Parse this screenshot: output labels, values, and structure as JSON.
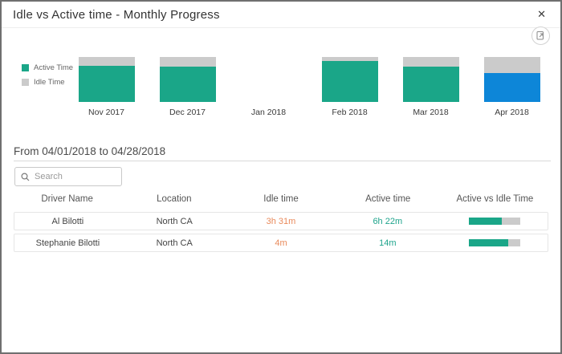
{
  "dialog": {
    "title": "Idle vs Active time - Monthly Progress",
    "close_label": "✕"
  },
  "toolbar": {
    "export_icon": "export-report-icon"
  },
  "colors": {
    "active_teal": "#1aa688",
    "idle_gray": "#cbcbcb",
    "selected_blue": "#0d86d8",
    "idle_text_orange": "#e98a5b",
    "active_text_teal": "#1fa48c"
  },
  "legend": {
    "items": [
      {
        "label": "Active Time",
        "color": "#1aa688"
      },
      {
        "label": "Idle Time",
        "color": "#cbcbcb"
      }
    ]
  },
  "chart_data": {
    "type": "bar",
    "stacked": true,
    "title": "Idle vs Active time - Monthly Progress",
    "categories": [
      "Nov 2017",
      "Dec 2017",
      "Jan 2018",
      "Feb 2018",
      "Mar 2018",
      "Apr 2018"
    ],
    "series": [
      {
        "name": "Active Time",
        "color": "#1aa688",
        "values_pct": [
          81,
          79,
          null,
          91,
          79,
          65
        ]
      },
      {
        "name": "Idle Time",
        "color": "#cbcbcb",
        "values_pct": [
          19,
          21,
          null,
          9,
          21,
          35
        ]
      }
    ],
    "highlight": {
      "category": "Apr 2018",
      "active_color": "#0d86d8"
    },
    "legend_position": "left",
    "axes_visible": false,
    "ylim": [
      0,
      100
    ]
  },
  "date_range": {
    "label": "From 04/01/2018 to 04/28/2018"
  },
  "search": {
    "placeholder": "Search",
    "value": ""
  },
  "table": {
    "columns": [
      "Driver Name",
      "Location",
      "Idle time",
      "Active time",
      "Active vs Idle Time"
    ],
    "rows": [
      {
        "driver": "Al Bilotti",
        "location": "North CA",
        "idle_time": "3h 31m",
        "active_time": "6h 22m",
        "active_pct": 64
      },
      {
        "driver": "Stephanie Bilotti",
        "location": "North CA",
        "idle_time": "4m",
        "active_time": "14m",
        "active_pct": 78
      }
    ]
  }
}
